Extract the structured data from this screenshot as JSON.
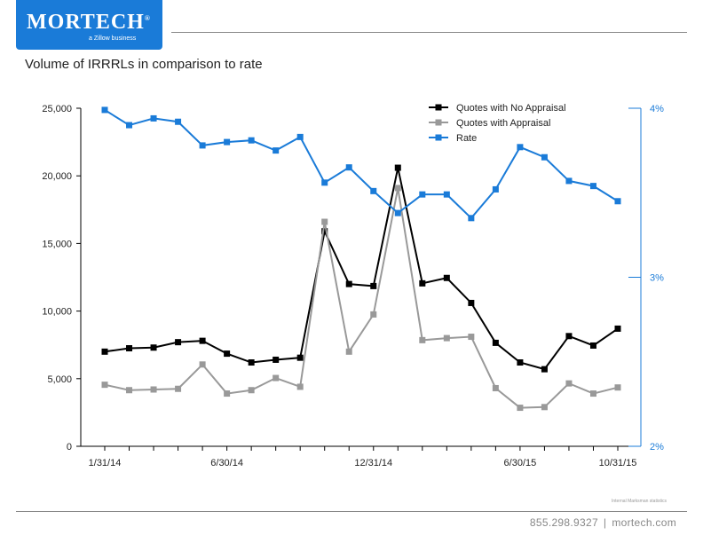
{
  "header": {
    "logo_word": "MORTECH",
    "logo_registered": "®",
    "logo_tagline": "a Zillow business"
  },
  "title": "Volume of IRRRLs in comparison to rate",
  "source_note": "Internal Marksman statistics",
  "footer": {
    "phone": "855.298.9327",
    "separator": "|",
    "website": "mortech.com"
  },
  "colors": {
    "no_appraisal": "#000000",
    "with_appraisal": "#999999",
    "rate": "#1a7bd8",
    "axis": "#000000"
  },
  "chart_data": {
    "type": "line",
    "x_tick_labels": [
      "1/31/14",
      "6/30/14",
      "12/31/14",
      "6/30/15",
      "10/31/15"
    ],
    "x_tick_label_indices": [
      0,
      5,
      11,
      17,
      21
    ],
    "point_count": 22,
    "y_left": {
      "ticks": [
        0,
        5000,
        10000,
        15000,
        20000,
        25000
      ],
      "tick_labels": [
        "0",
        "5,000",
        "10,000",
        "15,000",
        "20,000",
        "25,000"
      ],
      "ylim": [
        0,
        25000
      ]
    },
    "y_right": {
      "ticks": [
        2,
        3,
        4
      ],
      "tick_labels": [
        "2%",
        "3%",
        "4%"
      ],
      "ylim": [
        2,
        4
      ]
    },
    "legend_placement": "top-right",
    "grid": false,
    "series": [
      {
        "name": "Quotes with No Appraisal",
        "axis": "left",
        "values": [
          7000,
          7250,
          7300,
          7700,
          7800,
          6850,
          6200,
          6400,
          6550,
          15900,
          12000,
          11850,
          20600,
          12050,
          12450,
          10600,
          7650,
          6200,
          5700,
          8150,
          7450,
          8700
        ]
      },
      {
        "name": "Quotes with Appraisal",
        "axis": "left",
        "values": [
          4550,
          4150,
          4200,
          4250,
          6050,
          3900,
          4150,
          5050,
          4400,
          16600,
          7000,
          9750,
          19100,
          7850,
          8000,
          8100,
          4300,
          2850,
          2900,
          4650,
          3900,
          4350
        ]
      },
      {
        "name": "Rate",
        "axis": "right",
        "values": [
          3.99,
          3.9,
          3.94,
          3.92,
          3.78,
          3.8,
          3.81,
          3.75,
          3.83,
          3.56,
          3.65,
          3.51,
          3.38,
          3.49,
          3.49,
          3.35,
          3.52,
          3.77,
          3.71,
          3.57,
          3.54,
          3.45
        ]
      }
    ]
  }
}
